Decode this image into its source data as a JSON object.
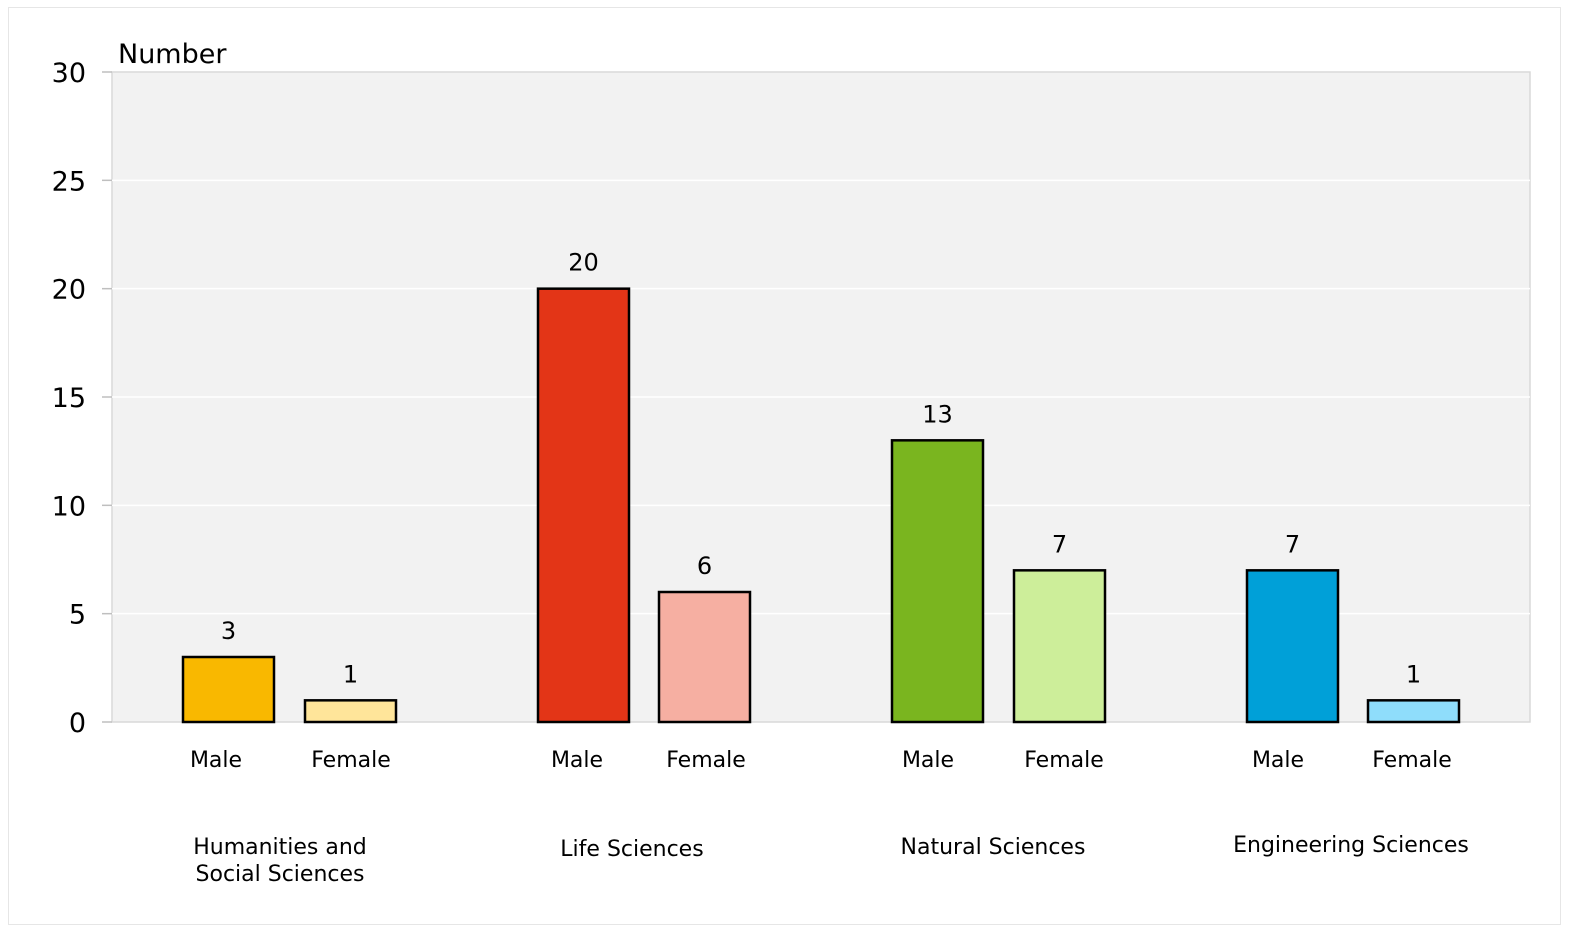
{
  "chart_data": {
    "type": "bar",
    "ylabel": "Number",
    "ylim": [
      0,
      30
    ],
    "yticks": [
      0,
      5,
      10,
      15,
      20,
      25,
      30
    ],
    "grid": true,
    "groups": [
      {
        "label": [
          "Humanities and",
          "Social Sciences"
        ],
        "bars": [
          {
            "label": "Male",
            "value": 3,
            "color": "#F9B800"
          },
          {
            "label": "Female",
            "value": 1,
            "color": "#FFE59A"
          }
        ]
      },
      {
        "label": [
          "Life Sciences"
        ],
        "bars": [
          {
            "label": "Male",
            "value": 20,
            "color": "#E33517"
          },
          {
            "label": "Female",
            "value": 6,
            "color": "#F6AFA2"
          }
        ]
      },
      {
        "label": [
          "Natural Sciences"
        ],
        "bars": [
          {
            "label": "Male",
            "value": 13,
            "color": "#7AB51F"
          },
          {
            "label": "Female",
            "value": 7,
            "color": "#CDEE9A"
          }
        ]
      },
      {
        "label": [
          "Engineering Sciences"
        ],
        "bars": [
          {
            "label": "Male",
            "value": 7,
            "color": "#00A0D8"
          },
          {
            "label": "Female",
            "value": 1,
            "color": "#8FDDFB"
          }
        ]
      }
    ],
    "plot_background": "#F2F2F2",
    "gridline_color": "#FFFFFF",
    "bar_outline": "#000000"
  }
}
